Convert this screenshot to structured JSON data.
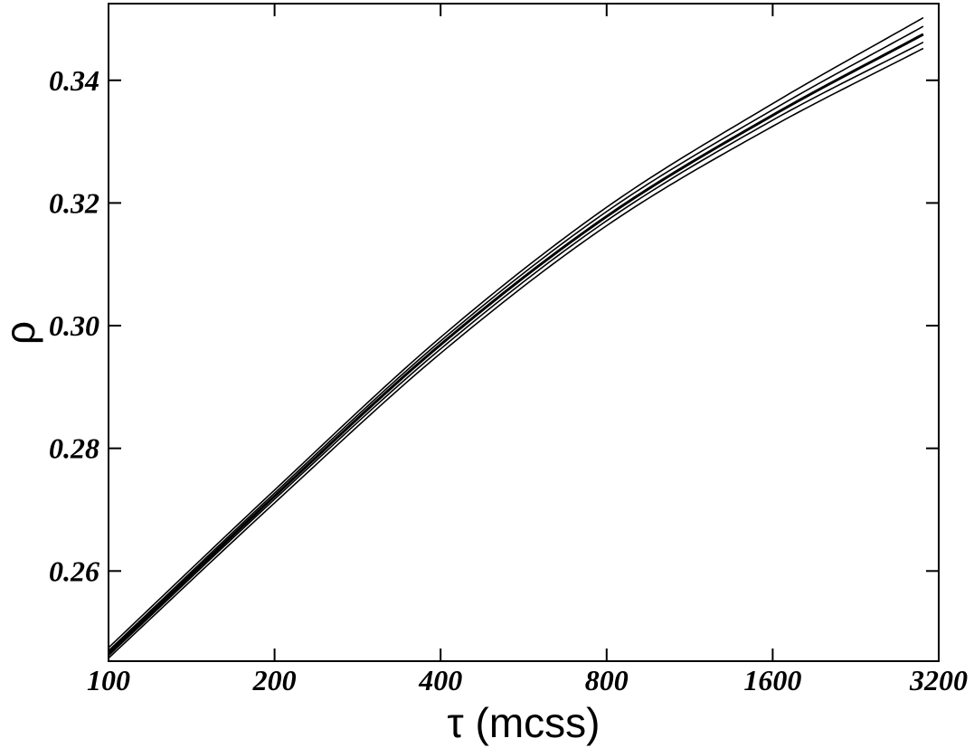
{
  "chart_data": {
    "type": "line",
    "title": "",
    "xlabel": "τ (mcss)",
    "ylabel": "ρ",
    "x_scale": "log2",
    "xlim": [
      100,
      3200
    ],
    "ylim": [
      0.2453,
      0.3525
    ],
    "x_ticks": [
      100,
      200,
      400,
      800,
      1600,
      3200
    ],
    "x_tick_labels": [
      "100",
      "200",
      "400",
      "800",
      "1600",
      "3200"
    ],
    "y_ticks": [
      0.26,
      0.28,
      0.3,
      0.32,
      0.34
    ],
    "y_tick_labels": [
      "0.26",
      "0.28",
      "0.30",
      "0.32",
      "0.34"
    ],
    "grid": false,
    "legend": "none",
    "line_color": "#000000",
    "series": [
      {
        "x": [
          100,
          200,
          400,
          800,
          1600,
          3000
        ],
        "values": [
          0.2458,
          0.2711,
          0.2955,
          0.3163,
          0.3325,
          0.3452
        ]
      },
      {
        "x": [
          100,
          200,
          400,
          800,
          1600,
          3000
        ],
        "values": [
          0.2462,
          0.2717,
          0.2962,
          0.3171,
          0.3335,
          0.3462
        ]
      },
      {
        "x": [
          100,
          200,
          400,
          800,
          1600,
          3000
        ],
        "values": [
          0.2466,
          0.2722,
          0.2969,
          0.3178,
          0.3343,
          0.3475
        ]
      },
      {
        "x": [
          100,
          200,
          400,
          800,
          1600,
          3000
        ],
        "values": [
          0.247,
          0.2727,
          0.2975,
          0.3186,
          0.3352,
          0.3488
        ]
      },
      {
        "x": [
          100,
          200,
          400,
          800,
          1600,
          3000
        ],
        "values": [
          0.2475,
          0.2732,
          0.2981,
          0.3193,
          0.3362,
          0.3502
        ]
      }
    ]
  }
}
